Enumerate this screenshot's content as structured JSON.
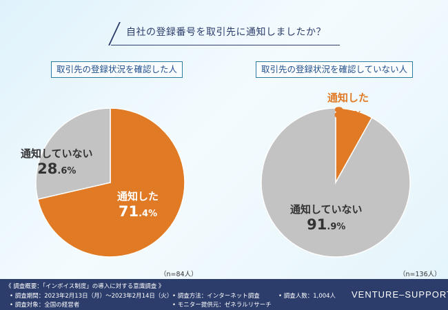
{
  "title": "自社の登録番号を取引先に通知しましたか？",
  "chart_data": [
    {
      "type": "pie",
      "title": "取引先の登録状況を確認した人",
      "n_label": "（n=84人）",
      "slices": [
        {
          "label": "通知した",
          "value": 71.4,
          "color": "#e07a25"
        },
        {
          "label": "通知していない",
          "value": 28.6,
          "color": "#c3c3c3"
        }
      ]
    },
    {
      "type": "pie",
      "title": "取引先の登録状況を確認していない人",
      "n_label": "（n=136人）",
      "slices": [
        {
          "label": "通知した",
          "value": 8.1,
          "color": "#e07a25"
        },
        {
          "label": "通知していない",
          "value": 91.9,
          "color": "#c3c3c3"
        }
      ]
    }
  ],
  "footer": {
    "overview": "《 調査概要：「インボイス制度」の導入に対する意識調査 》",
    "period": "• 調査期間：2023年2月13日（月）〜2023年2月14日（火）",
    "target": "• 調査対象：全国の経営者",
    "method": "• 調査方法：インターネット調査",
    "provider": "• モニター提供元：ゼネラルリサーチ",
    "count": "• 調査人数：1,004人",
    "brand": "VENTURE–SUPPORT"
  }
}
